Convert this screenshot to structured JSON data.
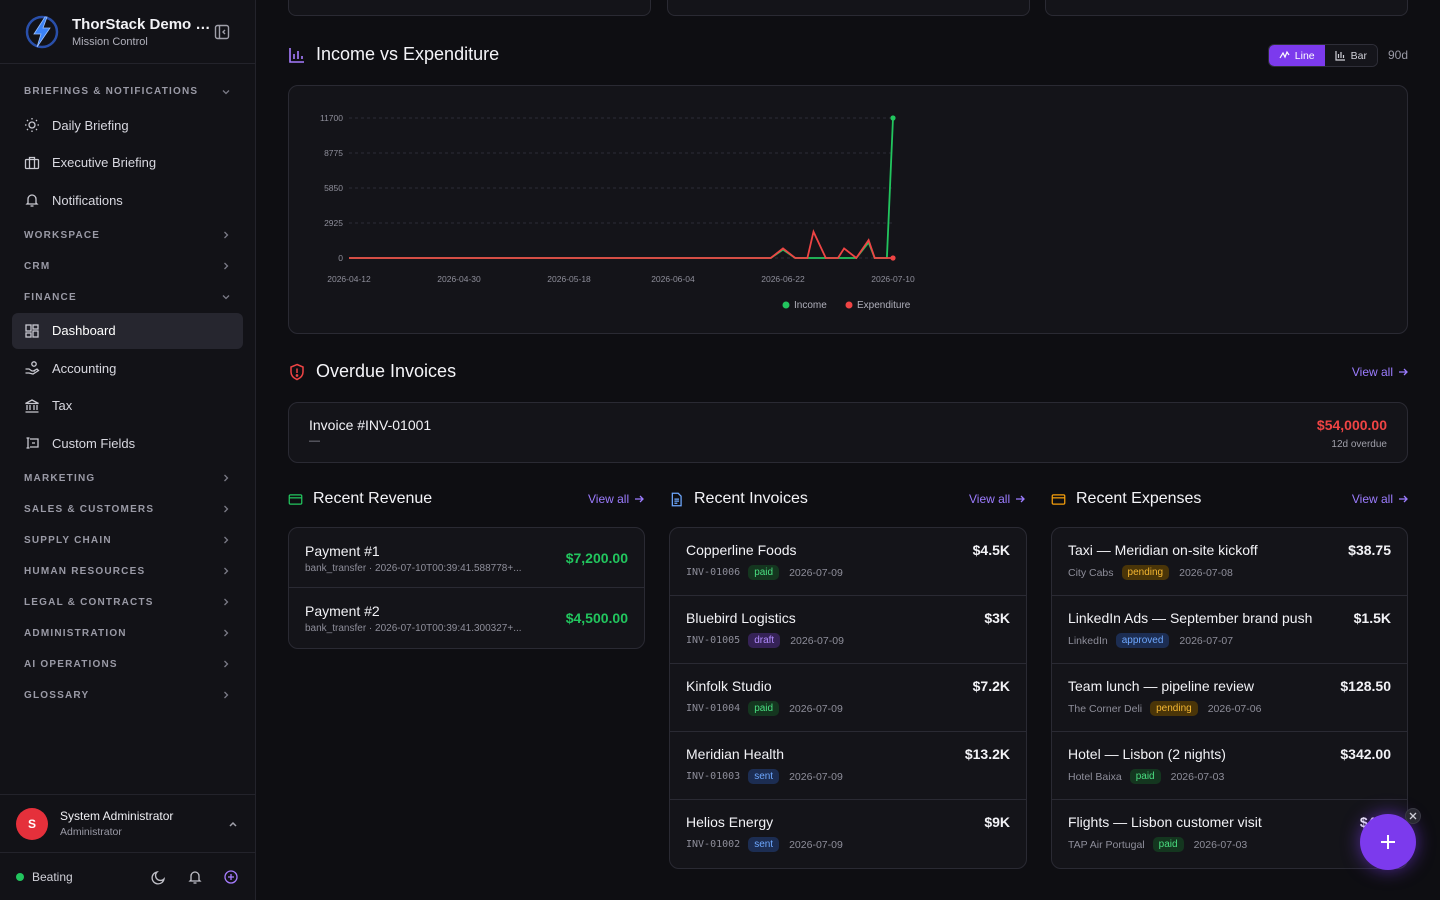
{
  "brand": {
    "title": "ThorStack Demo C...",
    "subtitle": "Mission Control"
  },
  "sidebar": {
    "sections": [
      {
        "label": "BRIEFINGS & NOTIFICATIONS",
        "open": true,
        "items": [
          {
            "label": "Daily Briefing",
            "icon": "sun-icon"
          },
          {
            "label": "Executive Briefing",
            "icon": "briefcase-icon"
          },
          {
            "label": "Notifications",
            "icon": "bell-icon"
          }
        ]
      },
      {
        "label": "WORKSPACE",
        "open": false
      },
      {
        "label": "CRM",
        "open": false
      },
      {
        "label": "FINANCE",
        "open": true,
        "items": [
          {
            "label": "Dashboard",
            "icon": "dashboard-icon",
            "active": true
          },
          {
            "label": "Accounting",
            "icon": "hand-coins-icon"
          },
          {
            "label": "Tax",
            "icon": "bank-icon"
          },
          {
            "label": "Custom Fields",
            "icon": "form-field-icon"
          }
        ]
      },
      {
        "label": "MARKETING",
        "open": false
      },
      {
        "label": "SALES & CUSTOMERS",
        "open": false
      },
      {
        "label": "SUPPLY CHAIN",
        "open": false
      },
      {
        "label": "HUMAN RESOURCES",
        "open": false
      },
      {
        "label": "LEGAL & CONTRACTS",
        "open": false
      },
      {
        "label": "ADMINISTRATION",
        "open": false
      },
      {
        "label": "AI OPERATIONS",
        "open": false
      },
      {
        "label": "GLOSSARY",
        "open": false
      }
    ]
  },
  "user": {
    "initial": "S",
    "name": "System Administrator",
    "role": "Administrator"
  },
  "status": {
    "label": "Beating",
    "color": "#22c55e"
  },
  "chart_section": {
    "title": "Income vs Expenditure",
    "toggle": {
      "line": "Line",
      "bar": "Bar",
      "selected": "Line"
    },
    "range": "90d"
  },
  "chart_data": {
    "type": "line",
    "x_ticks": [
      "2026-04-12",
      "2026-04-30",
      "2026-05-18",
      "2026-06-04",
      "2026-06-22",
      "2026-07-10"
    ],
    "y_ticks": [
      0,
      2925,
      5850,
      8775,
      11700
    ],
    "ylim": [
      0,
      11700
    ],
    "series": [
      {
        "name": "Income",
        "color": "#22c55e",
        "points": [
          [
            "2026-04-12",
            0
          ],
          [
            "2026-06-20",
            0
          ],
          [
            "2026-06-22",
            700
          ],
          [
            "2026-06-24",
            0
          ],
          [
            "2026-07-04",
            0
          ],
          [
            "2026-07-06",
            1300
          ],
          [
            "2026-07-07",
            0
          ],
          [
            "2026-07-09",
            0
          ],
          [
            "2026-07-10",
            11700
          ]
        ]
      },
      {
        "name": "Expenditure",
        "color": "#ef4444",
        "points": [
          [
            "2026-04-12",
            0
          ],
          [
            "2026-06-20",
            0
          ],
          [
            "2026-06-22",
            800
          ],
          [
            "2026-06-24",
            0
          ],
          [
            "2026-06-26",
            0
          ],
          [
            "2026-06-27",
            2200
          ],
          [
            "2026-06-29",
            0
          ],
          [
            "2026-07-01",
            0
          ],
          [
            "2026-07-02",
            800
          ],
          [
            "2026-07-04",
            0
          ],
          [
            "2026-07-06",
            1500
          ],
          [
            "2026-07-07",
            0
          ],
          [
            "2026-07-10",
            0
          ]
        ]
      }
    ],
    "legend": [
      "Income",
      "Expenditure"
    ],
    "legend_position": "bottom"
  },
  "overdue": {
    "title": "Overdue Invoices",
    "view_all": "View all",
    "invoice": {
      "title": "Invoice #INV-01001",
      "sub": "—",
      "amount": "$54,000.00",
      "overdue": "12d overdue"
    }
  },
  "revenue": {
    "title": "Recent Revenue",
    "view_all": "View all",
    "rows": [
      {
        "title": "Payment #1",
        "meta": "bank_transfer · 2026-07-10T00:39:41.588778+...",
        "amount": "$7,200.00"
      },
      {
        "title": "Payment #2",
        "meta": "bank_transfer · 2026-07-10T00:39:41.300327+...",
        "amount": "$4,500.00"
      }
    ]
  },
  "invoices": {
    "title": "Recent Invoices",
    "view_all": "View all",
    "rows": [
      {
        "title": "Copperline Foods",
        "code": "INV-01006",
        "status": "paid",
        "date": "2026-07-09",
        "amount": "$4.5K"
      },
      {
        "title": "Bluebird Logistics",
        "code": "INV-01005",
        "status": "draft",
        "date": "2026-07-09",
        "amount": "$3K"
      },
      {
        "title": "Kinfolk Studio",
        "code": "INV-01004",
        "status": "paid",
        "date": "2026-07-09",
        "amount": "$7.2K"
      },
      {
        "title": "Meridian Health",
        "code": "INV-01003",
        "status": "sent",
        "date": "2026-07-09",
        "amount": "$13.2K"
      },
      {
        "title": "Helios Energy",
        "code": "INV-01002",
        "status": "sent",
        "date": "2026-07-09",
        "amount": "$9K"
      }
    ]
  },
  "expenses": {
    "title": "Recent Expenses",
    "view_all": "View all",
    "rows": [
      {
        "title": "Taxi — Meridian on-site kickoff",
        "vendor": "City Cabs",
        "status": "pending",
        "date": "2026-07-08",
        "amount": "$38.75"
      },
      {
        "title": "LinkedIn Ads — September brand push",
        "vendor": "LinkedIn",
        "status": "approved",
        "date": "2026-07-07",
        "amount": "$1.5K"
      },
      {
        "title": "Team lunch — pipeline review",
        "vendor": "The Corner Deli",
        "status": "pending",
        "date": "2026-07-06",
        "amount": "$128.50"
      },
      {
        "title": "Hotel — Lisbon (2 nights)",
        "vendor": "Hotel Baixa",
        "status": "paid",
        "date": "2026-07-03",
        "amount": "$342.00"
      },
      {
        "title": "Flights — Lisbon customer visit",
        "vendor": "TAP Air Portugal",
        "status": "paid",
        "date": "2026-07-03",
        "amount": "$486"
      }
    ]
  },
  "colors": {
    "accent": "#7c3aed",
    "income": "#22c55e",
    "expense": "#ef4444"
  }
}
